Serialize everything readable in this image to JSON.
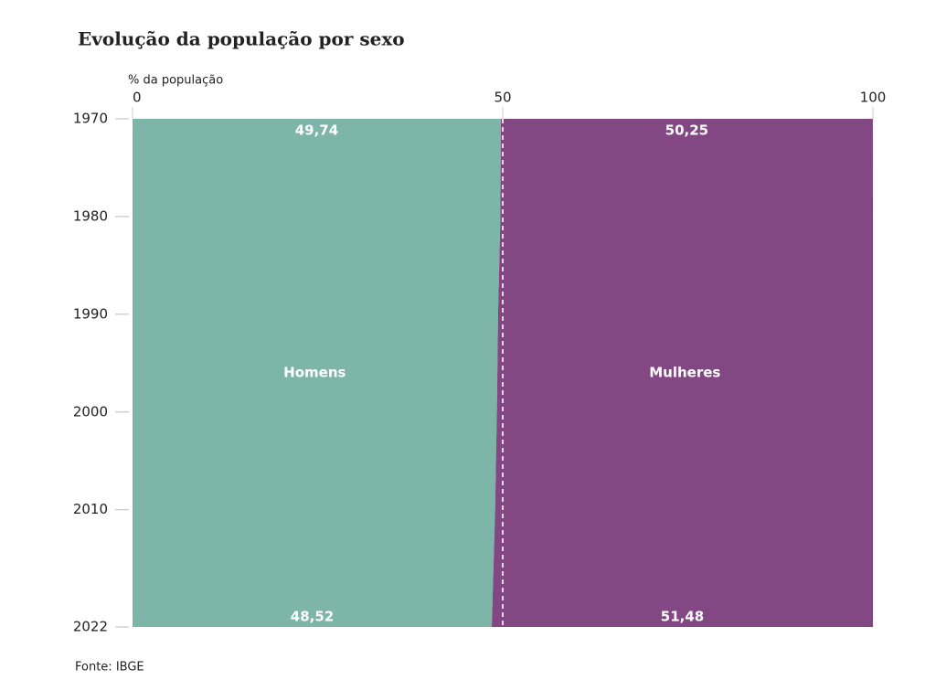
{
  "chart_data": {
    "type": "stacked_area_horizontal",
    "title": "Evolução da população por sexo",
    "x_label": "% da população",
    "source": "Fonte: IBGE",
    "y": [
      1970,
      1980,
      1990,
      2000,
      2010,
      2022
    ],
    "ylim": [
      1970,
      2022
    ],
    "yticks": [
      1970,
      1980,
      1990,
      2000,
      2010,
      2022
    ],
    "xlim": [
      0,
      100
    ],
    "xticks": [
      0,
      50,
      100
    ],
    "reference_x": 50,
    "series": [
      {
        "name": "Homens",
        "color": "#7db5a8",
        "values": [
          49.74,
          49.68,
          49.37,
          49.21,
          48.97,
          48.52
        ],
        "value_labels": [
          "49,74",
          null,
          null,
          null,
          null,
          "48,52"
        ]
      },
      {
        "name": "Mulheres",
        "color": "#834884",
        "values": [
          50.25,
          50.32,
          50.63,
          50.79,
          51.03,
          51.48
        ],
        "value_labels": [
          "50,25",
          null,
          null,
          null,
          null,
          "51,48"
        ]
      }
    ]
  }
}
